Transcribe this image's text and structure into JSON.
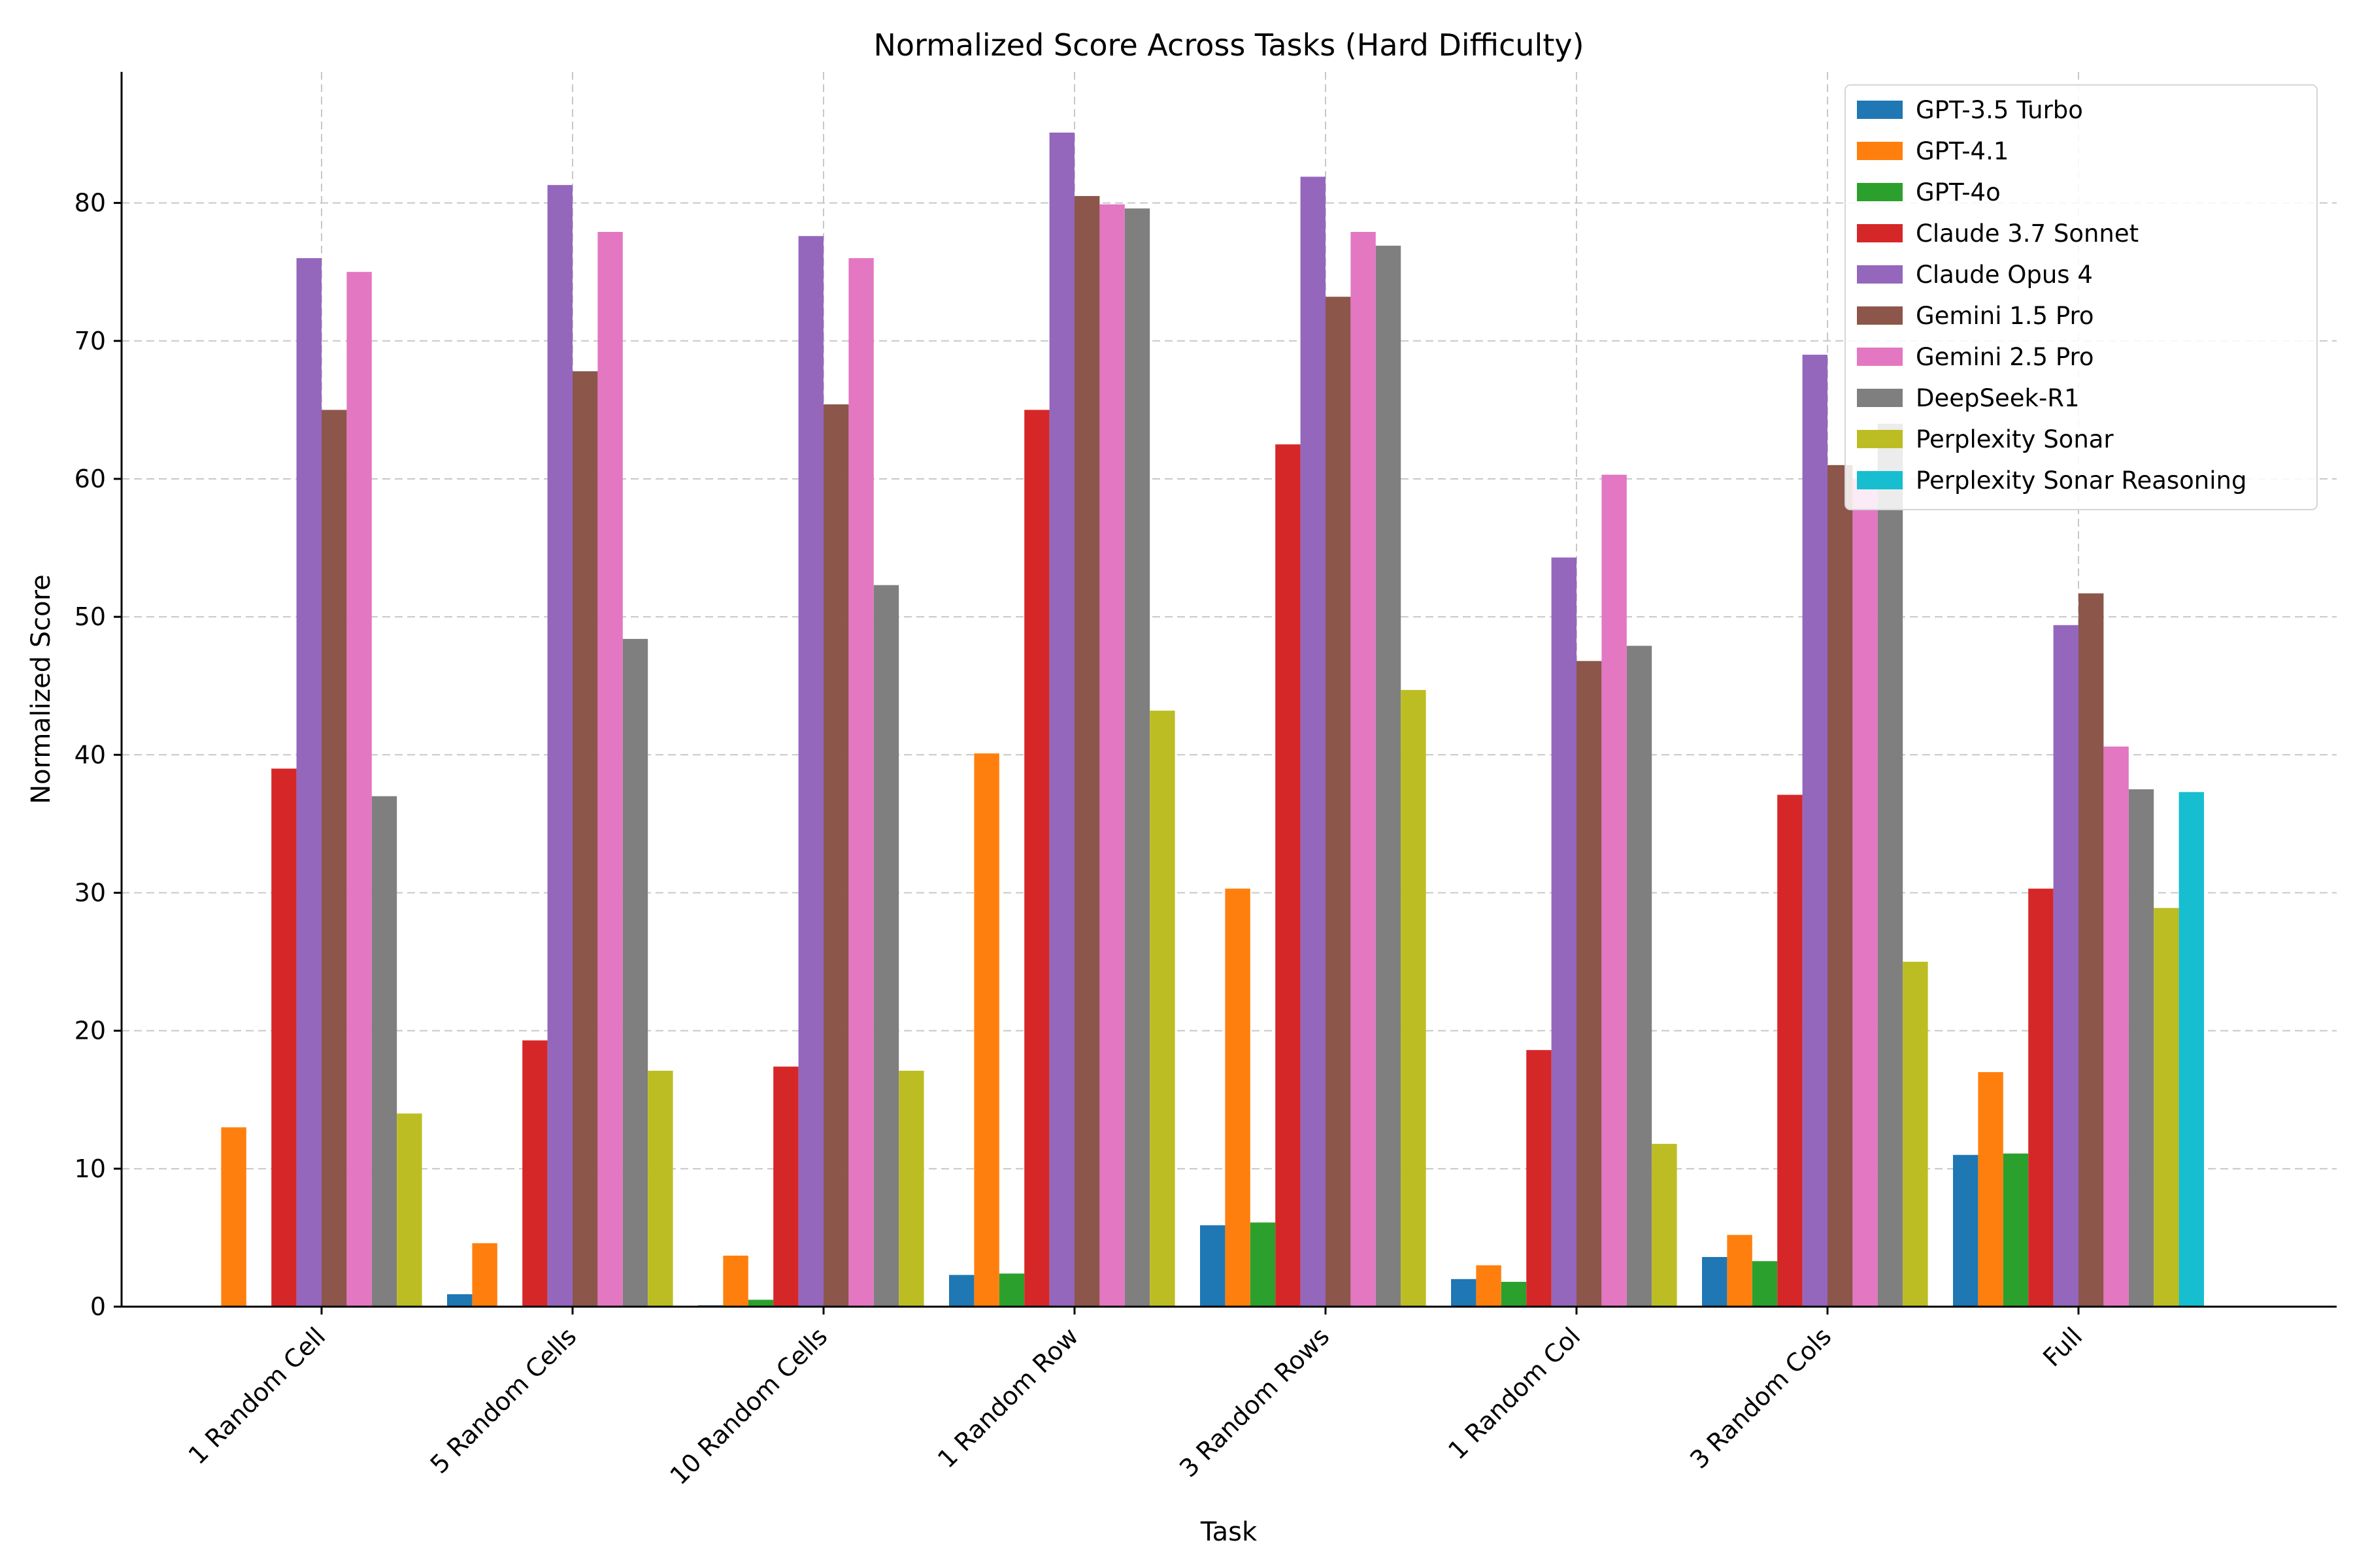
{
  "chart_data": {
    "type": "bar",
    "title": "Normalized Score Across Tasks (Hard Difficulty)",
    "xlabel": "Task",
    "ylabel": "Normalized Score",
    "ylim": [
      0,
      89.5
    ],
    "yticks": [
      0,
      10,
      20,
      30,
      40,
      50,
      60,
      70,
      80
    ],
    "grid": true,
    "legend_position": "top-right",
    "categories": [
      "1 Random Cell",
      "5 Random Cells",
      "10 Random Cells",
      "1 Random Row",
      "3 Random Rows",
      "1 Random Col",
      "3 Random Cols",
      "Full"
    ],
    "series": [
      {
        "name": "GPT-3.5 Turbo",
        "color": "#1f77b4",
        "values": [
          0,
          0.9,
          0.1,
          2.3,
          5.9,
          2.0,
          3.6,
          11.0
        ]
      },
      {
        "name": "GPT-4.1",
        "color": "#ff7f0e",
        "values": [
          13.0,
          4.6,
          3.7,
          40.1,
          30.3,
          3.0,
          5.2,
          17.0
        ]
      },
      {
        "name": "GPT-4o",
        "color": "#2ca02c",
        "values": [
          0,
          0,
          0.5,
          2.4,
          6.1,
          1.8,
          3.3,
          11.1
        ]
      },
      {
        "name": "Claude 3.7 Sonnet",
        "color": "#d62728",
        "values": [
          39.0,
          19.3,
          17.4,
          65.0,
          62.5,
          18.6,
          37.1,
          30.3
        ]
      },
      {
        "name": "Claude Opus 4",
        "color": "#9467bd",
        "values": [
          76.0,
          81.3,
          77.6,
          85.1,
          81.9,
          54.3,
          69.0,
          49.4
        ]
      },
      {
        "name": "Gemini 1.5 Pro",
        "color": "#8c564b",
        "values": [
          65.0,
          67.8,
          65.4,
          80.5,
          73.2,
          46.8,
          61.0,
          51.7
        ]
      },
      {
        "name": "Gemini 2.5 Pro",
        "color": "#e377c2",
        "values": [
          75.0,
          77.9,
          76.0,
          79.9,
          77.9,
          60.3,
          60.0,
          40.6
        ]
      },
      {
        "name": "DeepSeek-R1",
        "color": "#7f7f7f",
        "values": [
          37.0,
          48.4,
          52.3,
          79.6,
          76.9,
          47.9,
          64.0,
          37.5
        ]
      },
      {
        "name": "Perplexity Sonar",
        "color": "#bcbd22",
        "values": [
          14.0,
          17.1,
          17.1,
          43.2,
          44.7,
          11.8,
          25.0,
          28.9
        ]
      },
      {
        "name": "Perplexity Sonar Reasoning",
        "color": "#17becf",
        "values": [
          0,
          0,
          0,
          0,
          0,
          0,
          0,
          37.3
        ]
      }
    ]
  }
}
